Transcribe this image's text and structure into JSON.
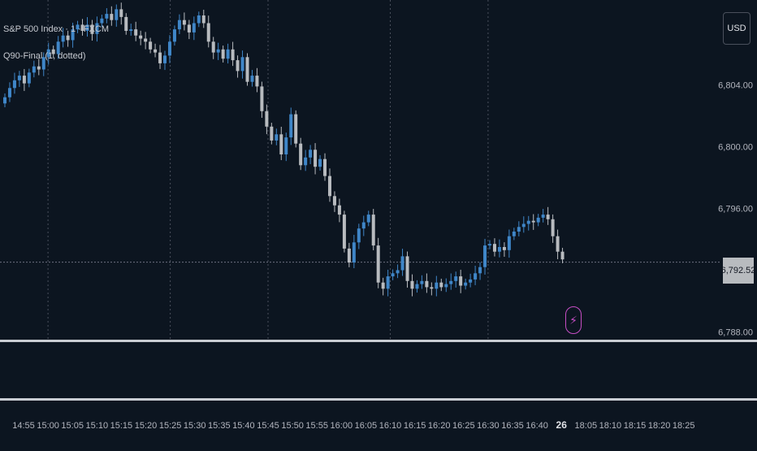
{
  "header": {
    "title": "S&P 500 Index · 1 · FXCM",
    "indicator": "Q90-Final (1, dotted)"
  },
  "controls": {
    "currency_label": "USD"
  },
  "current_price_label": "6,792.52",
  "alert_icon": "lightning-bolt-icon",
  "colors": {
    "background": "#0c1520",
    "up_candle": "#3f86c8",
    "down_candle": "#b8bbbf",
    "gridline": "#4a505c",
    "alert": "#c64ec5"
  },
  "chart_data": {
    "type": "candlestick",
    "y_ticks": [
      "6,804.00",
      "6,800.00",
      "6,796.00",
      "6,792.52",
      "6,788.00"
    ],
    "ylim": [
      6787.5,
      6809.5
    ],
    "x_ticks": [
      "14:55",
      "15:00",
      "15:05",
      "15:10",
      "15:15",
      "15:20",
      "15:25",
      "15:30",
      "15:35",
      "15:40",
      "15:45",
      "15:50",
      "15:55",
      "16:00",
      "16:05",
      "16:10",
      "16:15",
      "16:20",
      "16:25",
      "16:30",
      "16:35",
      "16:40",
      "26",
      "18:05",
      "18:10",
      "18:15",
      "18:20",
      "18:25"
    ],
    "vertical_gridlines_at": [
      "15:00",
      "15:25",
      "15:45",
      "16:10",
      "16:30"
    ],
    "current_price": 6792.52,
    "closes": [
      6803.2,
      6803.8,
      6804.3,
      6804.6,
      6804.1,
      6804.8,
      6805.2,
      6805.0,
      6805.8,
      6806.3,
      6806.0,
      6806.8,
      6807.2,
      6806.9,
      6807.6,
      6807.9,
      6807.5,
      6807.9,
      6807.3,
      6808.0,
      6808.3,
      6808.6,
      6808.2,
      6808.9,
      6808.4,
      6807.5,
      6807.6,
      6807.2,
      6807.0,
      6806.8,
      6806.3,
      6806.1,
      6805.4,
      6805.9,
      6806.8,
      6807.6,
      6808.2,
      6807.9,
      6807.4,
      6808.0,
      6808.5,
      6808.0,
      6806.8,
      6806.1,
      6806.3,
      6805.7,
      6806.3,
      6805.6,
      6804.9,
      6805.8,
      6804.2,
      6804.6,
      6803.9,
      6802.3,
      6801.3,
      6800.4,
      6800.8,
      6799.5,
      6800.6,
      6802.1,
      6800.2,
      6798.8,
      6799.3,
      6799.8,
      6798.7,
      6799.2,
      6798.1,
      6796.8,
      6796.2,
      6795.6,
      6793.4,
      6792.5,
      6793.8,
      6794.7,
      6795.1,
      6795.6,
      6793.6,
      6791.2,
      6790.8,
      6791.6,
      6791.8,
      6792.0,
      6792.9,
      6791.3,
      6790.8,
      6791.1,
      6791.3,
      6790.9,
      6790.8,
      6791.2,
      6790.9,
      6791.1,
      6791.3,
      6791.6,
      6791.0,
      6791.2,
      6791.4,
      6791.8,
      6792.2,
      6793.6,
      6793.7,
      6793.2,
      6793.5,
      6793.3,
      6794.2,
      6794.5,
      6794.8,
      6795.0,
      6795.2,
      6795.1,
      6795.4,
      6795.6,
      6795.3,
      6794.2,
      6793.2,
      6792.7
    ]
  }
}
